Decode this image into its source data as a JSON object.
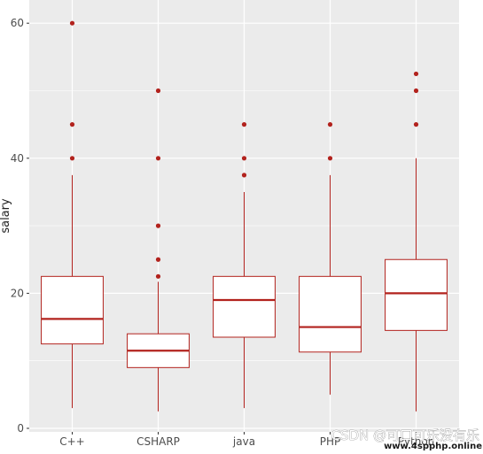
{
  "chart_data": {
    "type": "boxplot",
    "title": "",
    "xlabel": "",
    "ylabel": "salary",
    "ylim": [
      -0.5,
      63
    ],
    "y_ticks": [
      0,
      20,
      40,
      60
    ],
    "grid": true,
    "legend": "none",
    "colors": {
      "panel": "#ebebeb",
      "grid": "#ffffff",
      "box_stroke": "#b2221d",
      "box_fill": "#ffffff",
      "outlier": "#b2221d"
    },
    "categories": [
      "C++",
      "CSHARP",
      "java",
      "PHP",
      "Python"
    ],
    "series": [
      {
        "category": "C++",
        "whisker_low": 3.0,
        "q1": 12.5,
        "median": 16.2,
        "q3": 22.5,
        "whisker_high": 37.5,
        "outliers": [
          40,
          45,
          60
        ]
      },
      {
        "category": "CSHARP",
        "whisker_low": 2.5,
        "q1": 9.0,
        "median": 11.5,
        "q3": 14.0,
        "whisker_high": 21.7,
        "outliers": [
          22.5,
          25,
          30,
          40,
          50
        ]
      },
      {
        "category": "java",
        "whisker_low": 3.0,
        "q1": 13.5,
        "median": 19.0,
        "q3": 22.5,
        "whisker_high": 35.0,
        "outliers": [
          37.5,
          40,
          45
        ]
      },
      {
        "category": "PHP",
        "whisker_low": 5.0,
        "q1": 11.3,
        "median": 15.0,
        "q3": 22.5,
        "whisker_high": 37.5,
        "outliers": [
          40,
          45
        ]
      },
      {
        "category": "Python",
        "whisker_low": 2.5,
        "q1": 14.5,
        "median": 20.0,
        "q3": 25.0,
        "whisker_high": 40.0,
        "outliers": [
          45,
          50,
          52.5
        ]
      }
    ]
  },
  "watermark": {
    "text": "CSDN @可口可乐没有乐",
    "url": "www.4spphp.online"
  }
}
